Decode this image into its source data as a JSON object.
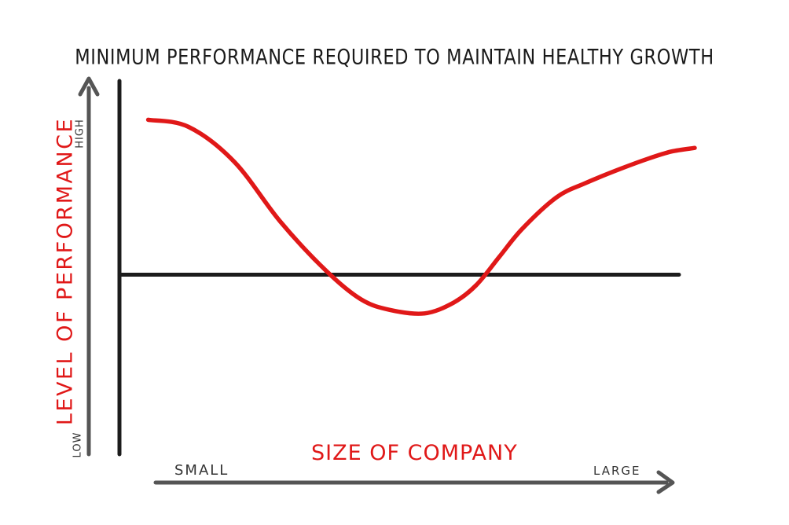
{
  "chart_data": {
    "type": "line",
    "title": "MINIMUM PERFORMANCE REQUIRED TO MAINTAIN HEALTHY GROWTH",
    "xlabel": "SIZE OF COMPANY",
    "ylabel": "LEVEL OF PERFORMANCE",
    "x_tick_labels": [
      "SMALL",
      "LARGE"
    ],
    "y_tick_labels": [
      "LOW",
      "HIGH"
    ],
    "xlim": [
      0,
      100
    ],
    "ylim": [
      0,
      100
    ],
    "grid": false,
    "legend": "none",
    "reference_line": {
      "y": 51
    },
    "series": [
      {
        "x": [
          5,
          12,
          20,
          28,
          36,
          42,
          47,
          53,
          58,
          62,
          66,
          70,
          76,
          81,
          87,
          92,
          96,
          100
        ],
        "y": [
          95,
          93,
          83,
          66,
          52,
          44,
          41,
          40,
          43,
          48,
          56,
          64,
          73,
          77,
          81,
          84,
          86,
          87
        ]
      }
    ],
    "colors": {
      "curve": "#e01818",
      "axes": "#1c1c1c",
      "arrows": "#555555",
      "axis_labels": "#e01818"
    }
  }
}
